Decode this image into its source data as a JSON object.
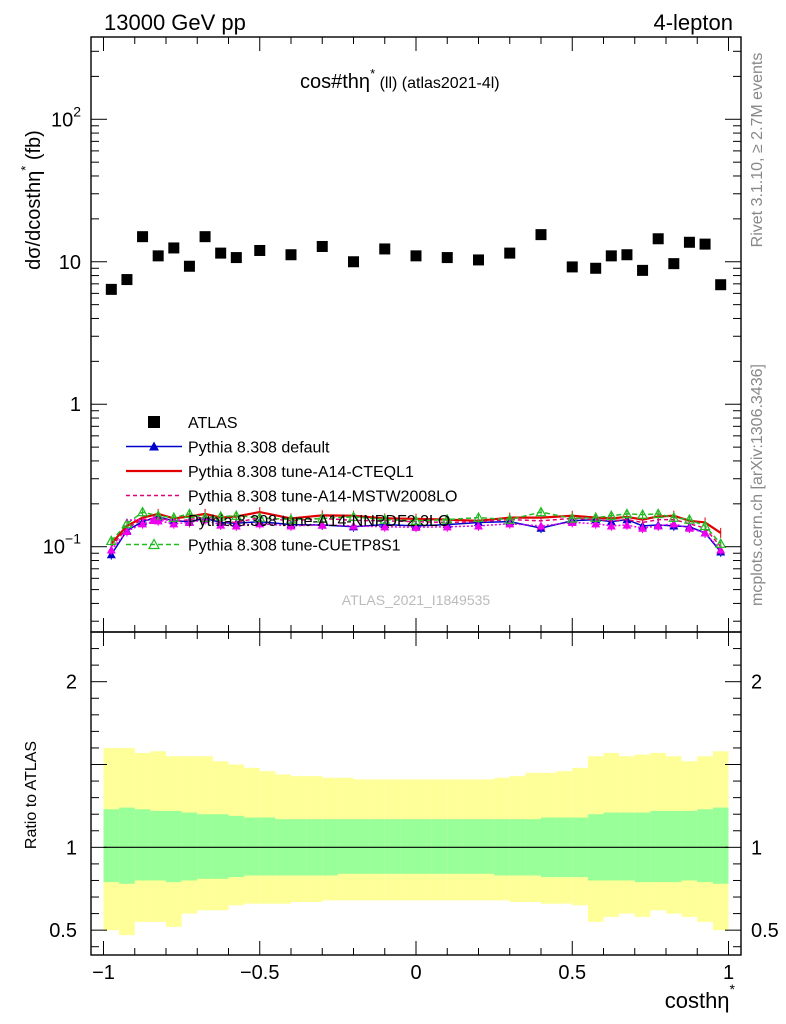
{
  "header": {
    "left": "13000 GeV pp",
    "right": "4-lepton"
  },
  "side_labels": {
    "rivet": "Rivet 3.1.10, ≥ 2.7M events",
    "mcplots": "mcplots.cern.ch [arXiv:1306.3436]"
  },
  "chart_data": {
    "type": "scatter",
    "title_main": "cos#thη",
    "title_sup": "*",
    "title_rest": " (ll) (atlas2021-4l)",
    "watermark": "ATLAS_2021_I1849535",
    "ylabel_main": {
      "pre": "dσ/dcosthη",
      "sup": "*",
      "post": " (fb)"
    },
    "xlabel": {
      "main": "costhη",
      "sup": "*"
    },
    "ratio_ylabel": "Ratio to ATLAS",
    "xlim": [
      -1.04,
      1.04
    ],
    "ylim_main_log": [
      0.0252,
      378
    ],
    "ylim_ratio": [
      0.35,
      2.3
    ],
    "x_ticks": [
      {
        "v": -1,
        "label": "−1"
      },
      {
        "v": -0.5,
        "label": "−0.5"
      },
      {
        "v": 0,
        "label": "0"
      },
      {
        "v": 0.5,
        "label": "0.5"
      },
      {
        "v": 1,
        "label": "1"
      }
    ],
    "y_ticks_main": [
      {
        "v": 0.1,
        "base": "10",
        "exp": "−1"
      },
      {
        "v": 1,
        "base": "1",
        "exp": ""
      },
      {
        "v": 10,
        "base": "10",
        "exp": ""
      },
      {
        "v": 100,
        "base": "10",
        "exp": "2"
      }
    ],
    "y_ticks_ratio": [
      {
        "v": 0.5,
        "label": "0.5"
      },
      {
        "v": 1,
        "label": "1"
      },
      {
        "v": 2,
        "label": "2"
      }
    ],
    "ratio_bins": {
      "edges": [
        -1,
        -0.95,
        -0.9,
        -0.85,
        -0.8,
        -0.75,
        -0.7,
        -0.65,
        -0.6,
        -0.55,
        -0.5,
        -0.45,
        -0.4,
        -0.35,
        -0.3,
        -0.25,
        -0.2,
        -0.15,
        -0.1,
        -0.05,
        0,
        0.05,
        0.1,
        0.15,
        0.2,
        0.25,
        0.3,
        0.35,
        0.4,
        0.45,
        0.5,
        0.55,
        0.6,
        0.65,
        0.7,
        0.75,
        0.8,
        0.85,
        0.9,
        0.95,
        1
      ],
      "yellow_lo": [
        0.5,
        0.47,
        0.55,
        0.55,
        0.52,
        0.6,
        0.62,
        0.62,
        0.65,
        0.66,
        0.66,
        0.66,
        0.67,
        0.67,
        0.68,
        0.68,
        0.68,
        0.68,
        0.68,
        0.68,
        0.68,
        0.68,
        0.68,
        0.68,
        0.68,
        0.68,
        0.67,
        0.67,
        0.66,
        0.66,
        0.65,
        0.55,
        0.58,
        0.6,
        0.58,
        0.62,
        0.6,
        0.58,
        0.55,
        0.5
      ],
      "yellow_hi": [
        1.6,
        1.6,
        1.57,
        1.58,
        1.55,
        1.55,
        1.55,
        1.52,
        1.5,
        1.48,
        1.46,
        1.44,
        1.43,
        1.43,
        1.42,
        1.42,
        1.41,
        1.41,
        1.41,
        1.41,
        1.41,
        1.41,
        1.41,
        1.41,
        1.41,
        1.42,
        1.43,
        1.45,
        1.45,
        1.46,
        1.48,
        1.55,
        1.57,
        1.55,
        1.56,
        1.57,
        1.55,
        1.52,
        1.55,
        1.58
      ],
      "green_lo": [
        0.79,
        0.78,
        0.8,
        0.8,
        0.79,
        0.8,
        0.81,
        0.81,
        0.82,
        0.83,
        0.83,
        0.83,
        0.83,
        0.83,
        0.83,
        0.84,
        0.84,
        0.84,
        0.84,
        0.84,
        0.84,
        0.84,
        0.84,
        0.84,
        0.84,
        0.83,
        0.83,
        0.83,
        0.82,
        0.82,
        0.82,
        0.8,
        0.8,
        0.8,
        0.79,
        0.79,
        0.79,
        0.8,
        0.79,
        0.78
      ],
      "green_hi": [
        1.23,
        1.24,
        1.23,
        1.22,
        1.22,
        1.21,
        1.2,
        1.2,
        1.19,
        1.18,
        1.18,
        1.17,
        1.17,
        1.17,
        1.17,
        1.17,
        1.17,
        1.17,
        1.17,
        1.17,
        1.17,
        1.17,
        1.17,
        1.17,
        1.17,
        1.17,
        1.17,
        1.17,
        1.18,
        1.18,
        1.18,
        1.2,
        1.21,
        1.21,
        1.21,
        1.22,
        1.22,
        1.22,
        1.23,
        1.24
      ]
    },
    "series": [
      {
        "name": "ATLAS",
        "style": "square",
        "color": "#000000",
        "x": [
          -0.975,
          -0.925,
          -0.875,
          -0.825,
          -0.775,
          -0.725,
          -0.675,
          -0.625,
          -0.575,
          -0.5,
          -0.4,
          -0.3,
          -0.2,
          -0.1,
          0.0,
          0.1,
          0.2,
          0.3,
          0.4,
          0.5,
          0.575,
          0.625,
          0.675,
          0.725,
          0.775,
          0.825,
          0.875,
          0.925,
          0.975
        ],
        "y": [
          6.4,
          7.5,
          15,
          11,
          12.5,
          9.3,
          15,
          11.5,
          10.7,
          12,
          11.2,
          12.8,
          10,
          12.3,
          11,
          10.7,
          10.3,
          11.5,
          15.5,
          9.2,
          9,
          11,
          11.2,
          8.7,
          14.5,
          9.7,
          13.7,
          13.3,
          6.9
        ]
      },
      {
        "name": "Pythia 8.308 default",
        "style": "tri-down",
        "color": "#0000cc",
        "dash": "",
        "x": [
          -0.975,
          -0.925,
          -0.875,
          -0.825,
          -0.775,
          -0.725,
          -0.675,
          -0.625,
          -0.575,
          -0.5,
          -0.4,
          -0.3,
          -0.2,
          -0.1,
          0.0,
          0.1,
          0.2,
          0.3,
          0.4,
          0.5,
          0.575,
          0.625,
          0.675,
          0.725,
          0.775,
          0.825,
          0.875,
          0.925,
          0.975
        ],
        "y": [
          0.088,
          0.13,
          0.15,
          0.162,
          0.152,
          0.15,
          0.158,
          0.148,
          0.146,
          0.15,
          0.143,
          0.142,
          0.138,
          0.143,
          0.14,
          0.143,
          0.148,
          0.15,
          0.135,
          0.152,
          0.155,
          0.15,
          0.155,
          0.14,
          0.142,
          0.14,
          0.138,
          0.125,
          0.092
        ]
      },
      {
        "name": "Pythia 8.308 tune-A14-CTEQL1",
        "style": "line",
        "color": "#e00000",
        "dash": "",
        "x": [
          -0.975,
          -0.925,
          -0.875,
          -0.825,
          -0.775,
          -0.725,
          -0.675,
          -0.625,
          -0.575,
          -0.5,
          -0.4,
          -0.3,
          -0.2,
          -0.1,
          0.0,
          0.1,
          0.2,
          0.3,
          0.4,
          0.5,
          0.575,
          0.625,
          0.675,
          0.725,
          0.775,
          0.825,
          0.875,
          0.925,
          0.975
        ],
        "y": [
          0.105,
          0.14,
          0.16,
          0.17,
          0.158,
          0.163,
          0.17,
          0.16,
          0.163,
          0.175,
          0.158,
          0.166,
          0.165,
          0.158,
          0.157,
          0.155,
          0.152,
          0.16,
          0.16,
          0.165,
          0.16,
          0.158,
          0.162,
          0.155,
          0.163,
          0.165,
          0.152,
          0.148,
          0.125
        ]
      },
      {
        "name": "Pythia 8.308 tune-A14-MSTW2008LO",
        "style": "line",
        "color": "#e0007a",
        "dash": "4,3",
        "x": [
          -0.975,
          -0.925,
          -0.875,
          -0.825,
          -0.775,
          -0.725,
          -0.675,
          -0.625,
          -0.575,
          -0.5,
          -0.4,
          -0.3,
          -0.2,
          -0.1,
          0.0,
          0.1,
          0.2,
          0.3,
          0.4,
          0.5,
          0.575,
          0.625,
          0.675,
          0.725,
          0.775,
          0.825,
          0.875,
          0.925,
          0.975
        ],
        "y": [
          0.1,
          0.135,
          0.155,
          0.16,
          0.15,
          0.155,
          0.162,
          0.15,
          0.148,
          0.16,
          0.152,
          0.158,
          0.153,
          0.152,
          0.15,
          0.148,
          0.15,
          0.155,
          0.152,
          0.158,
          0.155,
          0.152,
          0.155,
          0.148,
          0.155,
          0.155,
          0.145,
          0.135,
          0.1
        ]
      },
      {
        "name": "Pythia 8.308 tune-A14-NNPDF2.3LO",
        "style": "tri-down-line",
        "color": "#ee00ee",
        "dash": "2,2",
        "x": [
          -0.975,
          -0.925,
          -0.875,
          -0.825,
          -0.775,
          -0.725,
          -0.675,
          -0.625,
          -0.575,
          -0.5,
          -0.4,
          -0.3,
          -0.2,
          -0.1,
          0.0,
          0.1,
          0.2,
          0.3,
          0.4,
          0.5,
          0.575,
          0.625,
          0.675,
          0.725,
          0.775,
          0.825,
          0.875,
          0.925,
          0.975
        ],
        "y": [
          0.095,
          0.128,
          0.145,
          0.152,
          0.145,
          0.148,
          0.155,
          0.142,
          0.14,
          0.145,
          0.14,
          0.142,
          0.14,
          0.138,
          0.137,
          0.138,
          0.14,
          0.145,
          0.14,
          0.148,
          0.145,
          0.14,
          0.142,
          0.135,
          0.14,
          0.145,
          0.135,
          0.125,
          0.095
        ]
      },
      {
        "name": "Pythia 8.308 tune-CUETP8S1",
        "style": "tri-up-open",
        "color": "#22bb22",
        "dash": "5,3",
        "x": [
          -0.975,
          -0.925,
          -0.875,
          -0.825,
          -0.775,
          -0.725,
          -0.675,
          -0.625,
          -0.575,
          -0.5,
          -0.4,
          -0.3,
          -0.2,
          -0.1,
          0.0,
          0.1,
          0.2,
          0.3,
          0.4,
          0.5,
          0.575,
          0.625,
          0.675,
          0.725,
          0.775,
          0.825,
          0.875,
          0.925,
          0.975
        ],
        "y": [
          0.11,
          0.145,
          0.175,
          0.165,
          0.16,
          0.17,
          0.16,
          0.163,
          0.165,
          0.16,
          0.155,
          0.158,
          0.162,
          0.155,
          0.152,
          0.155,
          0.16,
          0.155,
          0.175,
          0.158,
          0.16,
          0.165,
          0.17,
          0.168,
          0.17,
          0.16,
          0.155,
          0.14,
          0.105
        ]
      }
    ]
  }
}
